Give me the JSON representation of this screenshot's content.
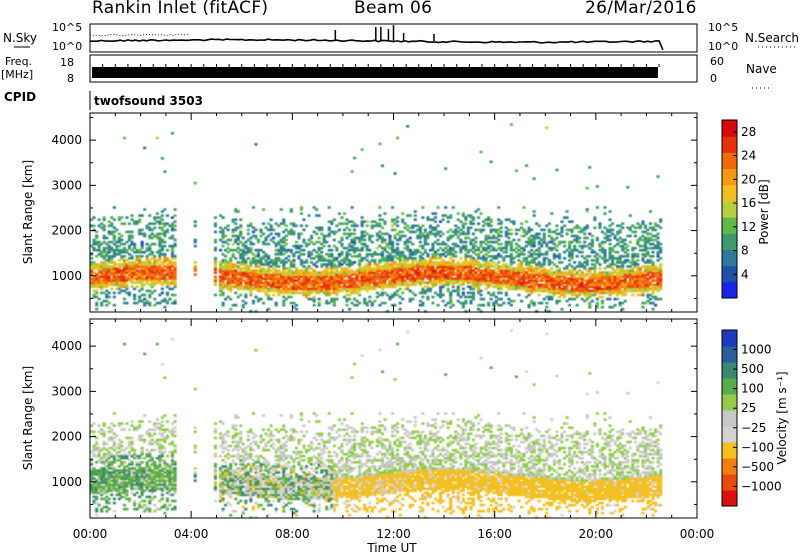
{
  "header": {
    "station": "Rankin Inlet (fitACF)",
    "beam": "Beam 06",
    "date": "26/Mar/2016"
  },
  "aux_panels": {
    "nsky_label": "N.Sky",
    "nsky_ticks": [
      "10^5",
      "10^0"
    ],
    "nsearch_label": "N.Search",
    "nsearch_ticks": [
      "10^5",
      "10^0"
    ],
    "freq_label_1": "Freq.",
    "freq_label_2": "[MHz]",
    "freq_ticks": [
      "18",
      "8"
    ],
    "nave_label": "Nave",
    "nave_ticks": [
      "60",
      "0"
    ],
    "cpid_label": "CPID",
    "cpid_value": "twofsound 3503"
  },
  "colors": {
    "power": [
      "#1a24e8",
      "#1f4fa8",
      "#2f7a9a",
      "#3d9a6a",
      "#5fb84a",
      "#b7cf3a",
      "#f0c020",
      "#f59a10",
      "#f06a0a",
      "#e8300a",
      "#d80808"
    ],
    "velocity": [
      "#2038c0",
      "#2a5e9a",
      "#3a8870",
      "#5aaa50",
      "#92cc48",
      "#c8c8c8",
      "#d2d2d2",
      "#f2c020",
      "#f28010",
      "#ea4a0a",
      "#dd1010"
    ]
  },
  "chart_data": [
    {
      "type": "heatmap",
      "panel": "power",
      "ylabel": "Slant Range [km]",
      "xlabel": "",
      "x_ticks": [
        "00:00",
        "04:00",
        "08:00",
        "12:00",
        "16:00",
        "20:00",
        "00:00"
      ],
      "xlim_hours": [
        0,
        24
      ],
      "ylim": [
        200,
        4600
      ],
      "y_ticks": [
        1000,
        2000,
        3000,
        4000
      ],
      "colorbar_label": "Power [dB]",
      "colorbar_ticks": [
        "4",
        "8",
        "12",
        "16",
        "20",
        "24",
        "28"
      ],
      "colorbar_range": [
        0,
        30
      ]
    },
    {
      "type": "heatmap",
      "panel": "velocity",
      "ylabel": "Slant Range [km]",
      "xlabel": "Time UT",
      "x_ticks": [
        "00:00",
        "04:00",
        "08:00",
        "12:00",
        "16:00",
        "20:00",
        "00:00"
      ],
      "xlim_hours": [
        0,
        24
      ],
      "ylim": [
        200,
        4600
      ],
      "y_ticks": [
        1000,
        2000,
        3000,
        4000
      ],
      "colorbar_label": "Velocity [m s⁻¹]",
      "colorbar_ticks": [
        "1000",
        "500",
        "100",
        "25",
        "−25",
        "−100",
        "−500",
        "−1000"
      ]
    }
  ]
}
